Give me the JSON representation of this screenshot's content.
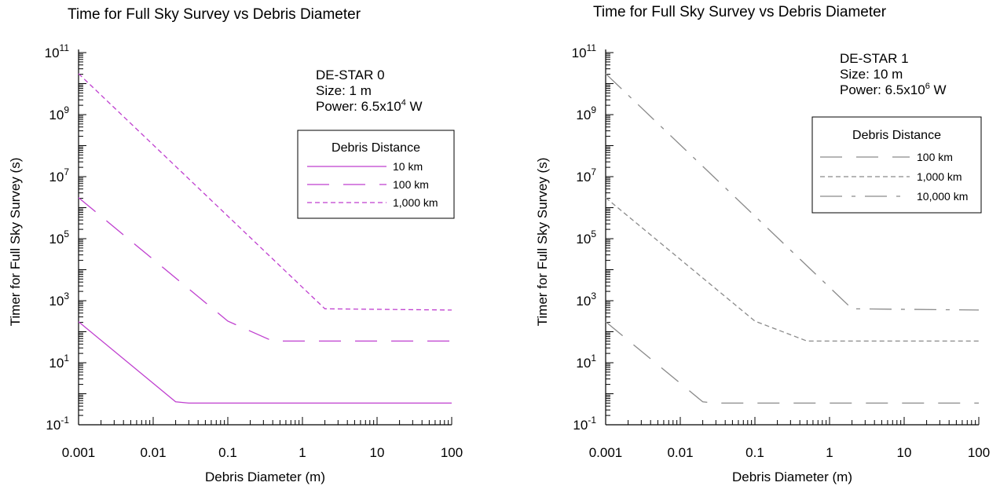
{
  "chart_data": [
    {
      "type": "line",
      "title": "Time for Full Sky Survey vs Debris Diameter",
      "xlabel": "Debris Diameter (m)",
      "ylabel": "Timer for Full Sky Survey (s)",
      "x_scale": "log",
      "y_scale": "log",
      "xlim": [
        0.001,
        100
      ],
      "ylim": [
        0.1,
        100000000000
      ],
      "x_ticks": [
        "0.001",
        "0.01",
        "0.1",
        "1",
        "10",
        "100"
      ],
      "y_ticks": [
        {
          "base": "10",
          "exp": "11"
        },
        {
          "base": "10",
          "exp": "9"
        },
        {
          "base": "10",
          "exp": "7"
        },
        {
          "base": "10",
          "exp": "5"
        },
        {
          "base": "10",
          "exp": "3"
        },
        {
          "base": "10",
          "exp": "1"
        },
        {
          "base": "10",
          "exp": "-1"
        }
      ],
      "info_lines": [
        {
          "text": "DE-STAR 0"
        },
        {
          "text": "Size: 1 m"
        },
        {
          "text": "Power: 6.5x10",
          "sup": "4",
          "suffix": " W"
        }
      ],
      "legend_title": "Debris Distance",
      "legend_position": "right",
      "series": [
        {
          "name": "10 km",
          "color": "#bf3fcf",
          "dash": "solid",
          "x": [
            0.001,
            0.02,
            0.03,
            100
          ],
          "y": [
            210,
            0.55,
            0.5,
            0.5
          ]
        },
        {
          "name": "100 km",
          "color": "#bf3fcf",
          "dash": "long-dash",
          "x": [
            0.001,
            0.1,
            0.4,
            100
          ],
          "y": [
            2100000,
            220,
            50,
            50
          ]
        },
        {
          "name": "1,000 km",
          "color": "#bf3fcf",
          "dash": "short-dash",
          "x": [
            0.001,
            2,
            100
          ],
          "y": [
            21000000000,
            550,
            500
          ]
        }
      ]
    },
    {
      "type": "line",
      "title": "Time for Full Sky Survey vs Debris Diameter",
      "xlabel": "Debris Diameter (m)",
      "ylabel": "Timer for Full Sky Survey (s)",
      "x_scale": "log",
      "y_scale": "log",
      "xlim": [
        0.001,
        100
      ],
      "ylim": [
        0.1,
        100000000000
      ],
      "x_ticks": [
        "0.001",
        "0.01",
        "0.1",
        "1",
        "10",
        "100"
      ],
      "y_ticks": [
        {
          "base": "10",
          "exp": "11"
        },
        {
          "base": "10",
          "exp": "9"
        },
        {
          "base": "10",
          "exp": "7"
        },
        {
          "base": "10",
          "exp": "5"
        },
        {
          "base": "10",
          "exp": "3"
        },
        {
          "base": "10",
          "exp": "1"
        },
        {
          "base": "10",
          "exp": "-1"
        }
      ],
      "info_lines": [
        {
          "text": "DE-STAR 1"
        },
        {
          "text": "Size: 10 m"
        },
        {
          "text": "Power: 6.5x10",
          "sup": "6",
          "suffix": " W"
        }
      ],
      "legend_title": "Debris Distance",
      "legend_position": "right",
      "series": [
        {
          "name": "100 km",
          "color": "#8a8a8a",
          "dash": "long-dash",
          "x": [
            0.001,
            0.02,
            0.03,
            100
          ],
          "y": [
            210,
            0.55,
            0.5,
            0.5
          ]
        },
        {
          "name": "1,000 km",
          "color": "#8a8a8a",
          "dash": "short-dash",
          "x": [
            0.001,
            0.1,
            0.5,
            100
          ],
          "y": [
            2100000,
            220,
            50,
            50
          ]
        },
        {
          "name": "10,000 km",
          "color": "#8a8a8a",
          "dash": "dash-dot",
          "x": [
            0.001,
            2,
            100
          ],
          "y": [
            21000000000,
            550,
            500
          ]
        }
      ]
    }
  ]
}
